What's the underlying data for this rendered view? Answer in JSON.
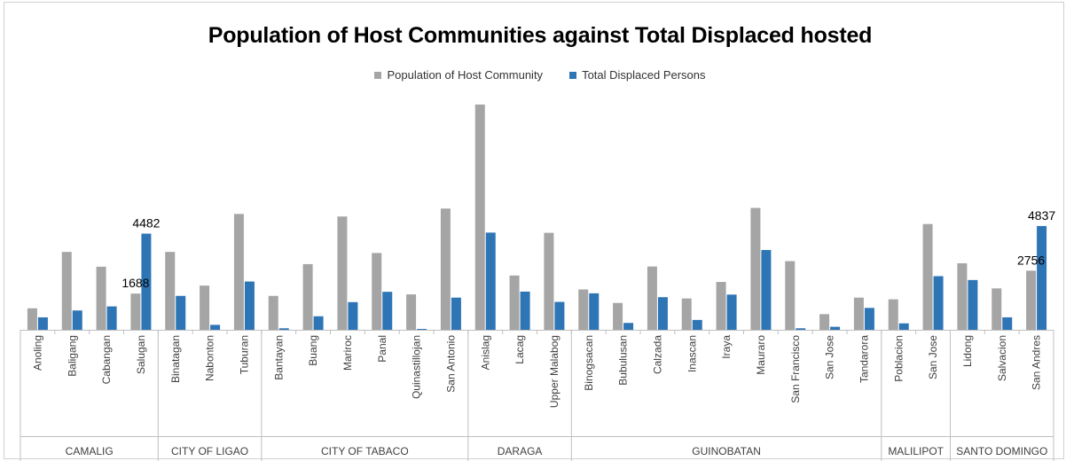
{
  "chart_data": {
    "type": "bar",
    "title": "Population of Host Communities against Total Displaced hosted",
    "xlabel": "",
    "ylabel": "",
    "legend_position": "top",
    "grid": false,
    "ylim": [
      0,
      10000
    ],
    "colors": {
      "population": "#a5a5a5",
      "displaced": "#2e75b6"
    },
    "groups": [
      {
        "name": "CAMALIG",
        "categories": [
          "Anoling",
          "Baligang",
          "Cabangan",
          "Salugan"
        ]
      },
      {
        "name": "CITY OF LIGAO",
        "categories": [
          "Binatagan",
          "Nabonton",
          "Tuburan"
        ]
      },
      {
        "name": "CITY OF TABACO",
        "categories": [
          "Bantayan",
          "Buang",
          "Mariroc",
          "Panal",
          "Quinastillojan",
          "San Antonio"
        ]
      },
      {
        "name": "DARAGA",
        "categories": [
          "Anislag",
          "Lacag",
          "Upper Malabog"
        ]
      },
      {
        "name": "GUINOBATAN",
        "categories": [
          "Binogsacan",
          "Bubulusan",
          "Calzada",
          "Inascan",
          "Iraya",
          "Mauraro",
          "San Francisco",
          "San Jose",
          "Tandarora"
        ]
      },
      {
        "name": "MALILIPOT",
        "categories": [
          "Poblacion",
          "San Jose"
        ]
      },
      {
        "name": "SANTO DOMINGO",
        "categories": [
          "Lidong",
          "Salvacion",
          "San Andres"
        ]
      }
    ],
    "series": [
      {
        "name": "Population of Host Community",
        "values": [
          1000,
          3630,
          2940,
          1688,
          3630,
          2060,
          5400,
          1580,
          3060,
          5280,
          3580,
          1650,
          5650,
          10500,
          2530,
          4520,
          1880,
          1250,
          2950,
          1460,
          2230,
          5680,
          3200,
          730,
          1500,
          1420,
          4930,
          3100,
          1930,
          2756
        ]
      },
      {
        "name": "Total Displaced Persons",
        "values": [
          580,
          900,
          1090,
          4482,
          1580,
          230,
          2250,
          70,
          630,
          1290,
          1770,
          40,
          1500,
          4530,
          1780,
          1300,
          1700,
          320,
          1520,
          460,
          1640,
          3720,
          70,
          140,
          1020,
          300,
          2500,
          2320,
          580,
          4837
        ]
      }
    ],
    "data_labels": [
      {
        "category": "Salugan",
        "series": "Population of Host Community",
        "text": "1688"
      },
      {
        "category": "Salugan",
        "series": "Total Displaced Persons",
        "text": "4482"
      },
      {
        "category": "San Andres",
        "series": "Population of Host Community",
        "text": "2756"
      },
      {
        "category": "San Andres",
        "series": "Total Displaced Persons",
        "text": "4837"
      }
    ]
  }
}
